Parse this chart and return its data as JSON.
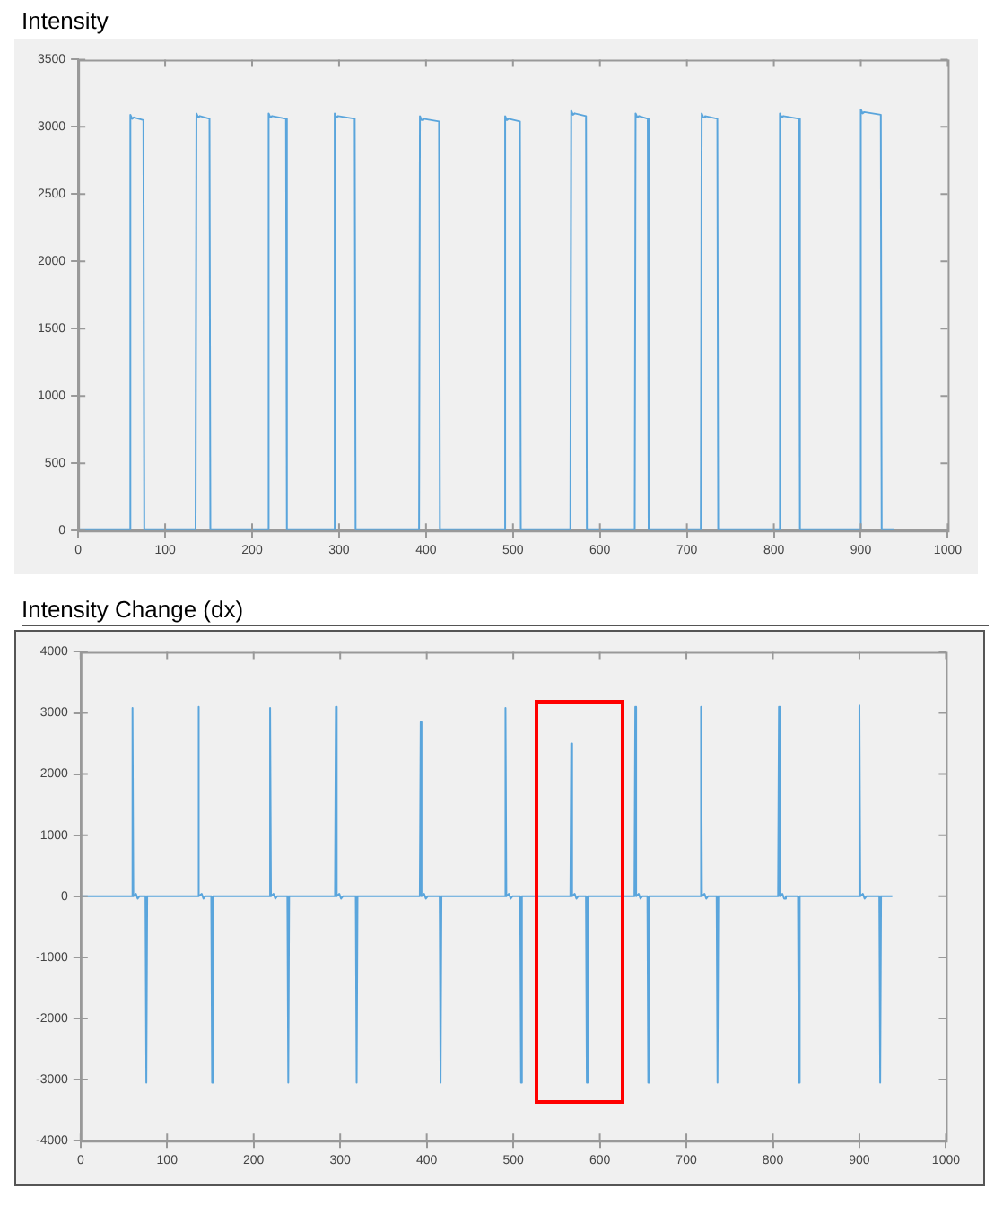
{
  "chart_data": [
    {
      "type": "line",
      "title": "Intensity",
      "xlim": [
        0,
        1000
      ],
      "xticks": [
        0,
        100,
        200,
        300,
        400,
        500,
        600,
        700,
        800,
        900,
        1000
      ],
      "ylim": [
        0,
        3500
      ],
      "yticks": [
        0,
        500,
        1000,
        1500,
        2000,
        2500,
        3000,
        3500
      ],
      "grid": false,
      "legend": false,
      "series": [
        {
          "color": "#5aa5dc",
          "x": [
            0,
            59,
            60,
            62,
            64,
            75,
            76,
            135,
            136,
            138,
            140,
            151,
            152,
            218,
            219,
            221,
            223,
            239,
            240,
            294,
            295,
            297,
            299,
            318,
            319,
            392,
            393,
            395,
            397,
            415,
            416,
            490,
            491,
            493,
            495,
            508,
            509,
            566,
            567,
            569,
            571,
            584,
            585,
            640,
            641,
            643,
            645,
            655,
            656,
            716,
            717,
            719,
            721,
            735,
            736,
            806,
            807,
            809,
            811,
            829,
            830,
            899,
            900,
            902,
            904,
            923,
            924,
            938
          ],
          "values": [
            10,
            10,
            3090,
            3060,
            3070,
            3050,
            10,
            10,
            3100,
            3070,
            3080,
            3060,
            10,
            10,
            3100,
            3070,
            3080,
            3060,
            10,
            10,
            3100,
            3070,
            3080,
            3060,
            10,
            10,
            3080,
            3050,
            3060,
            3040,
            10,
            10,
            3080,
            3050,
            3060,
            3040,
            10,
            10,
            3120,
            3090,
            3100,
            3080,
            10,
            10,
            3100,
            3070,
            3080,
            3060,
            10,
            10,
            3100,
            3070,
            3080,
            3060,
            10,
            10,
            3100,
            3070,
            3080,
            3060,
            10,
            10,
            3130,
            3100,
            3110,
            3090,
            10,
            10
          ]
        }
      ]
    },
    {
      "type": "line",
      "title": "Intensity Change (dx)",
      "xlim": [
        0,
        1000
      ],
      "xticks": [
        0,
        100,
        200,
        300,
        400,
        500,
        600,
        700,
        800,
        900,
        1000
      ],
      "ylim": [
        -4000,
        4000
      ],
      "yticks": [
        -4000,
        -3000,
        -2000,
        -1000,
        0,
        1000,
        2000,
        3000,
        4000
      ],
      "grid": false,
      "legend": false,
      "series": [
        {
          "color": "#5aa5dc",
          "x": [
            0,
            59,
            60,
            61,
            64,
            66,
            68,
            75,
            76,
            77,
            135,
            136,
            137,
            140,
            142,
            144,
            151,
            152,
            153,
            218,
            219,
            220,
            223,
            225,
            227,
            239,
            240,
            241,
            294,
            295,
            296,
            299,
            301,
            303,
            318,
            319,
            320,
            392,
            393,
            394,
            397,
            399,
            401,
            415,
            416,
            417,
            490,
            491,
            492,
            495,
            497,
            499,
            508,
            509,
            510,
            566,
            567,
            568,
            571,
            573,
            575,
            584,
            585,
            586,
            640,
            641,
            642,
            645,
            647,
            649,
            655,
            656,
            657,
            716,
            717,
            718,
            721,
            723,
            725,
            735,
            736,
            737,
            806,
            807,
            808,
            811,
            813,
            815,
            829,
            830,
            831,
            899,
            900,
            901,
            904,
            906,
            908,
            923,
            924,
            925,
            938
          ],
          "values": [
            0,
            0,
            3080,
            0,
            40,
            -40,
            0,
            0,
            -3050,
            0,
            0,
            3100,
            0,
            40,
            -40,
            0,
            0,
            -3050,
            0,
            0,
            3080,
            0,
            40,
            -40,
            0,
            0,
            -3050,
            0,
            0,
            3100,
            0,
            40,
            -40,
            0,
            0,
            -3050,
            0,
            0,
            2850,
            0,
            40,
            -40,
            0,
            0,
            -3050,
            0,
            0,
            3080,
            0,
            40,
            -40,
            0,
            0,
            -3050,
            0,
            0,
            2500,
            0,
            40,
            -40,
            0,
            0,
            -3050,
            0,
            0,
            3100,
            0,
            40,
            -40,
            0,
            0,
            -3050,
            0,
            0,
            3100,
            0,
            40,
            -40,
            0,
            0,
            -3050,
            0,
            0,
            3100,
            0,
            40,
            -40,
            0,
            0,
            -3050,
            0,
            0,
            3120,
            0,
            40,
            -40,
            0,
            0,
            -3050,
            0,
            0
          ]
        }
      ]
    }
  ]
}
